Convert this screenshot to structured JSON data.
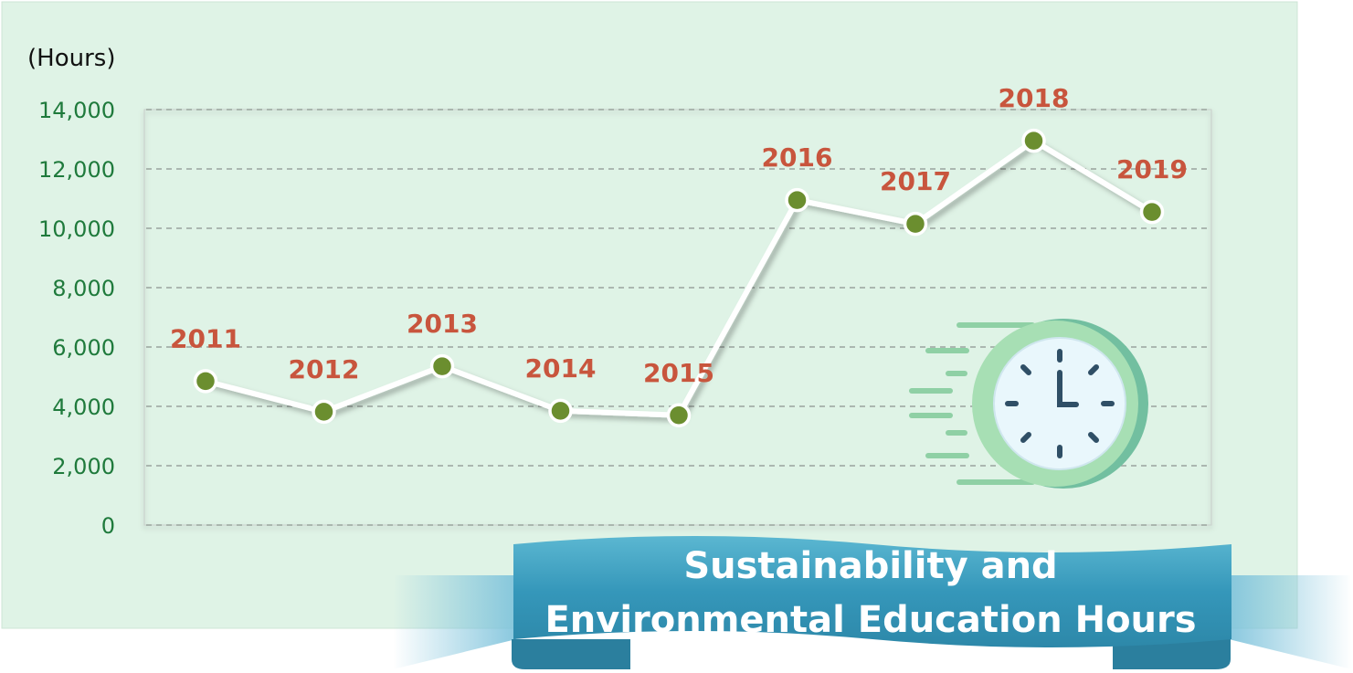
{
  "chart_data": {
    "type": "line",
    "title_lines": [
      "Sustainability and",
      "Environmental Education Hours"
    ],
    "ylabel": "(Hours)",
    "ylim": [
      0,
      14000
    ],
    "yticks": [
      0,
      2000,
      4000,
      6000,
      8000,
      10000,
      12000,
      14000
    ],
    "ytick_labels": [
      "0",
      "2,000",
      "4,000",
      "6,000",
      "8,000",
      "10,000",
      "12,000",
      "14,000"
    ],
    "categories": [
      "2011",
      "2012",
      "2013",
      "2014",
      "2015",
      "2016",
      "2017",
      "2018",
      "2019"
    ],
    "values": [
      4850,
      3820,
      5350,
      3850,
      3700,
      10950,
      10150,
      12950,
      10550
    ],
    "grid": true,
    "colors": {
      "panel": "#dff3e6",
      "line": "#ffffff",
      "marker": "#6b8e2f",
      "point_label": "#c8553d",
      "tick_label": "#1f7a3c",
      "banner": "#3a9fbf"
    }
  },
  "decoration": {
    "clock_icon": "stopwatch-clock-icon"
  }
}
